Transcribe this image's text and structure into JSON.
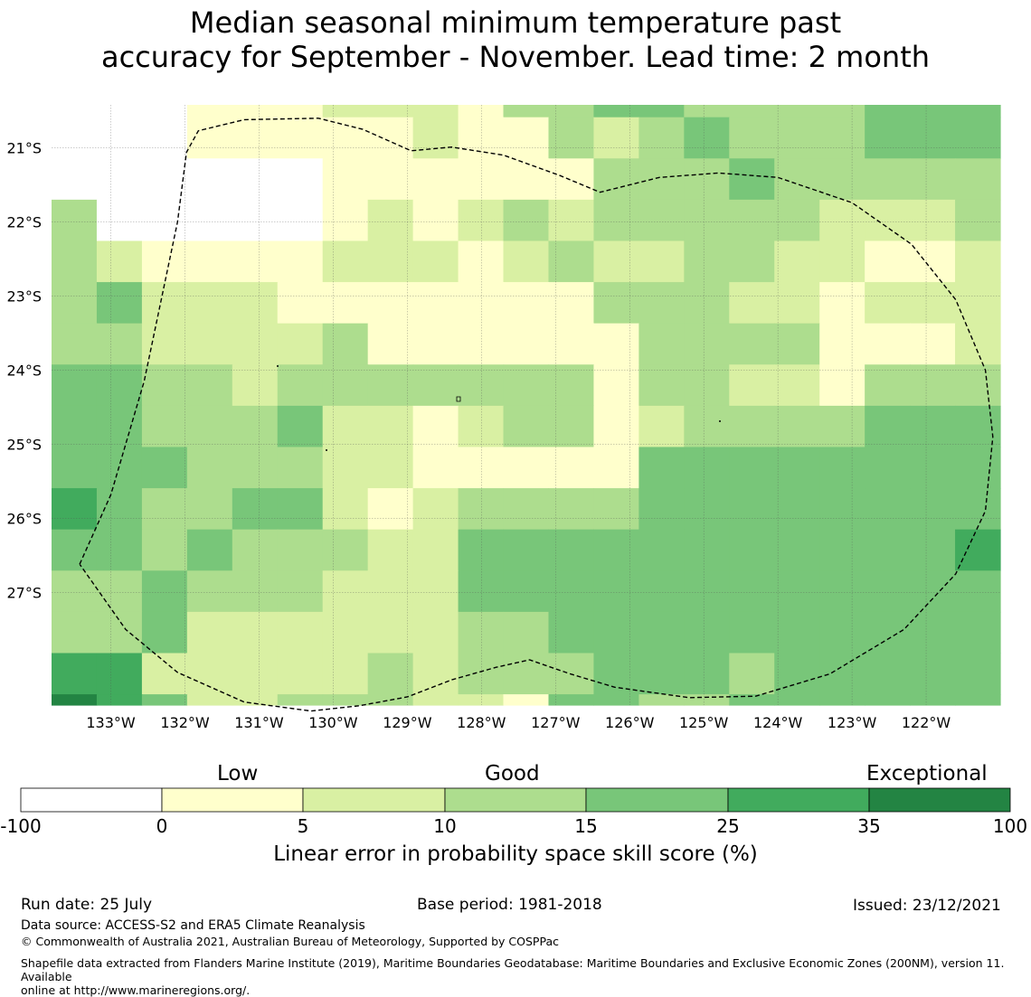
{
  "title_line1": "Median seasonal minimum temperature past",
  "title_line2": "accuracy for September - November. Lead time: 2 month",
  "map": {
    "lat_labels": [
      "21°S",
      "22°S",
      "23°S",
      "24°S",
      "25°S",
      "26°S",
      "27°S"
    ],
    "lat_values": [
      -21,
      -22,
      -23,
      -24,
      -25,
      -26,
      -27
    ],
    "lon_labels": [
      "133°W",
      "132°W",
      "131°W",
      "130°W",
      "129°W",
      "128°W",
      "127°W",
      "126°W",
      "125°W",
      "124°W",
      "123°W",
      "122°W"
    ],
    "lon_values": [
      -133,
      -132,
      -131,
      -130,
      -129,
      -128,
      -127,
      -126,
      -125,
      -124,
      -123,
      -122
    ],
    "extent": {
      "lon_min": -133.8,
      "lon_max": -121.0,
      "lat_max": -20.42,
      "lat_min": -28.52
    },
    "cell_size_deg": 0.5556,
    "grid_note": "rows north to south, columns west to east; value = class index (-1 none/white, 0 '0-5', 1 '5-10', 2 '10-15', 3 '15-25', 4 '25-35', 5 '35-100')",
    "grid": [
      [
        -1,
        -1,
        -1,
        0,
        0,
        0,
        1,
        1,
        1,
        0,
        2,
        2,
        3,
        3,
        2,
        2,
        2,
        2,
        3,
        3,
        3
      ],
      [
        -1,
        -1,
        -1,
        0,
        0,
        0,
        0,
        0,
        1,
        0,
        0,
        2,
        1,
        2,
        3,
        2,
        2,
        2,
        3,
        3,
        3
      ],
      [
        -1,
        -1,
        -1,
        -1,
        -1,
        -1,
        0,
        0,
        0,
        0,
        0,
        0,
        2,
        2,
        2,
        3,
        2,
        2,
        2,
        2,
        2
      ],
      [
        2,
        -1,
        -1,
        -1,
        -1,
        -1,
        0,
        1,
        0,
        1,
        2,
        1,
        2,
        2,
        2,
        2,
        2,
        1,
        1,
        1,
        2
      ],
      [
        2,
        1,
        0,
        0,
        0,
        0,
        1,
        1,
        1,
        0,
        1,
        2,
        1,
        1,
        2,
        2,
        1,
        1,
        0,
        0,
        1
      ],
      [
        2,
        3,
        1,
        1,
        1,
        0,
        0,
        0,
        0,
        0,
        0,
        0,
        2,
        2,
        2,
        1,
        1,
        0,
        1,
        1,
        1
      ],
      [
        2,
        2,
        1,
        1,
        1,
        1,
        2,
        0,
        0,
        0,
        0,
        0,
        0,
        2,
        2,
        2,
        2,
        0,
        0,
        0,
        1
      ],
      [
        3,
        3,
        2,
        2,
        1,
        2,
        2,
        2,
        2,
        2,
        2,
        2,
        0,
        2,
        2,
        1,
        1,
        0,
        2,
        2,
        2
      ],
      [
        3,
        3,
        2,
        2,
        2,
        3,
        1,
        1,
        0,
        1,
        2,
        2,
        0,
        1,
        2,
        2,
        2,
        2,
        3,
        3,
        3
      ],
      [
        3,
        3,
        3,
        2,
        2,
        2,
        1,
        1,
        0,
        0,
        0,
        0,
        0,
        3,
        3,
        3,
        3,
        3,
        3,
        3,
        3
      ],
      [
        4,
        3,
        2,
        2,
        3,
        3,
        1,
        0,
        1,
        2,
        2,
        2,
        2,
        3,
        3,
        3,
        3,
        3,
        3,
        3,
        3
      ],
      [
        3,
        3,
        2,
        3,
        2,
        2,
        2,
        1,
        1,
        3,
        3,
        3,
        3,
        3,
        3,
        3,
        3,
        3,
        3,
        3,
        4
      ],
      [
        2,
        2,
        3,
        2,
        2,
        2,
        1,
        1,
        1,
        3,
        3,
        3,
        3,
        3,
        3,
        3,
        3,
        3,
        3,
        3,
        3
      ],
      [
        2,
        2,
        3,
        1,
        1,
        1,
        1,
        1,
        1,
        2,
        2,
        3,
        3,
        3,
        3,
        3,
        3,
        3,
        3,
        3,
        3
      ],
      [
        4,
        4,
        1,
        1,
        1,
        1,
        1,
        2,
        1,
        2,
        2,
        2,
        3,
        3,
        3,
        2,
        3,
        3,
        3,
        3,
        3
      ],
      [
        5,
        4,
        3,
        1,
        1,
        2,
        2,
        2,
        1,
        1,
        0,
        3,
        3,
        2,
        2,
        3,
        3,
        3,
        3,
        3,
        3
      ]
    ],
    "eez_boundary": [
      [
        -133.42,
        -26.62
      ],
      [
        -133.0,
        -25.68
      ],
      [
        -132.55,
        -24.15
      ],
      [
        -132.1,
        -22.0
      ],
      [
        -131.98,
        -21.06
      ],
      [
        -131.82,
        -20.77
      ],
      [
        -131.2,
        -20.62
      ],
      [
        -130.2,
        -20.6
      ],
      [
        -129.6,
        -20.75
      ],
      [
        -128.95,
        -21.04
      ],
      [
        -128.4,
        -20.99
      ],
      [
        -127.7,
        -21.1
      ],
      [
        -126.95,
        -21.37
      ],
      [
        -126.4,
        -21.6
      ],
      [
        -125.6,
        -21.4
      ],
      [
        -124.8,
        -21.34
      ],
      [
        -124.0,
        -21.4
      ],
      [
        -123.0,
        -21.74
      ],
      [
        -122.2,
        -22.3
      ],
      [
        -121.6,
        -23.05
      ],
      [
        -121.2,
        -24.0
      ],
      [
        -121.1,
        -24.9
      ],
      [
        -121.2,
        -25.9
      ],
      [
        -121.6,
        -26.75
      ],
      [
        -122.3,
        -27.5
      ],
      [
        -123.3,
        -28.1
      ],
      [
        -124.3,
        -28.4
      ],
      [
        -125.2,
        -28.42
      ],
      [
        -126.2,
        -28.28
      ],
      [
        -126.8,
        -28.1
      ],
      [
        -127.35,
        -27.91
      ],
      [
        -127.8,
        -28.01
      ],
      [
        -128.4,
        -28.18
      ],
      [
        -129.0,
        -28.41
      ],
      [
        -129.65,
        -28.53
      ],
      [
        -130.3,
        -28.6
      ],
      [
        -131.2,
        -28.48
      ],
      [
        -132.1,
        -28.08
      ],
      [
        -132.8,
        -27.5
      ],
      [
        -133.42,
        -26.62
      ]
    ]
  },
  "colorbar": {
    "category_labels": [
      "Low",
      "Good",
      "Exceptional"
    ],
    "ticks": [
      "-100",
      "0",
      "5",
      "10",
      "15",
      "25",
      "35",
      "100"
    ],
    "colors": [
      "#ffffff",
      "#ffffcc",
      "#d9f0a3",
      "#addd8e",
      "#78c679",
      "#41ab5d",
      "#238443"
    ],
    "axis_title": "Linear error in probability space skill score (%)"
  },
  "footer": {
    "run_date": "Run date: 25 July",
    "base_period": "Base period: 1981-2018",
    "issued": "Issued: 23/12/2021",
    "data_source": "Data source: ACCESS-S2 and ERA5 Climate Reanalysis",
    "copyright": "© Commonwealth of Australia 2021, Australian Bureau of Meteorology, Supported by COSPPac",
    "shapefile_line1": "Shapefile data extracted from Flanders Marine Institute (2019), Maritime Boundaries Geodatabase: Maritime Boundaries and Exclusive Economic Zones (200NM), version 11. Available",
    "shapefile_line2": "online at http://www.marineregions.org/."
  }
}
